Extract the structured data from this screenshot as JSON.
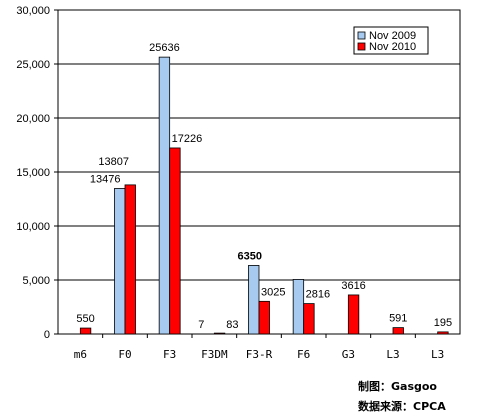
{
  "chart_data": {
    "type": "bar",
    "categories": [
      "m6",
      "F0",
      "F3",
      "F3DM",
      "F3-R",
      "F6",
      "G3",
      "L3",
      "L3"
    ],
    "series": [
      {
        "name": "Nov 2009",
        "color": "#a6caf0",
        "values": [
          0,
          13476,
          25636,
          7,
          6350,
          5054,
          0,
          0,
          0
        ]
      },
      {
        "name": "Nov 2010",
        "color": "#ff0000",
        "values": [
          550,
          13807,
          17226,
          83,
          3025,
          2816,
          3616,
          591,
          195
        ]
      }
    ],
    "data_labels": [
      [
        null,
        "13476",
        "25636",
        "7",
        "6350",
        null,
        null,
        null,
        null
      ],
      [
        "550",
        "13807",
        "17226",
        "83",
        "3025",
        "2816",
        "3616",
        "591",
        "195"
      ]
    ],
    "ytick_labels": [
      "0",
      "5,000",
      "10,000",
      "15,000",
      "20,000",
      "25,000",
      "30,000"
    ],
    "ylim": [
      0,
      30000
    ],
    "title": "",
    "xlabel": "",
    "ylabel": "",
    "grid": true,
    "legend_position": "top-right"
  },
  "credits": {
    "chart_by": "制图：Gasgoo",
    "source": "数据来源：CPCA"
  },
  "watermark": "Gasgoo"
}
